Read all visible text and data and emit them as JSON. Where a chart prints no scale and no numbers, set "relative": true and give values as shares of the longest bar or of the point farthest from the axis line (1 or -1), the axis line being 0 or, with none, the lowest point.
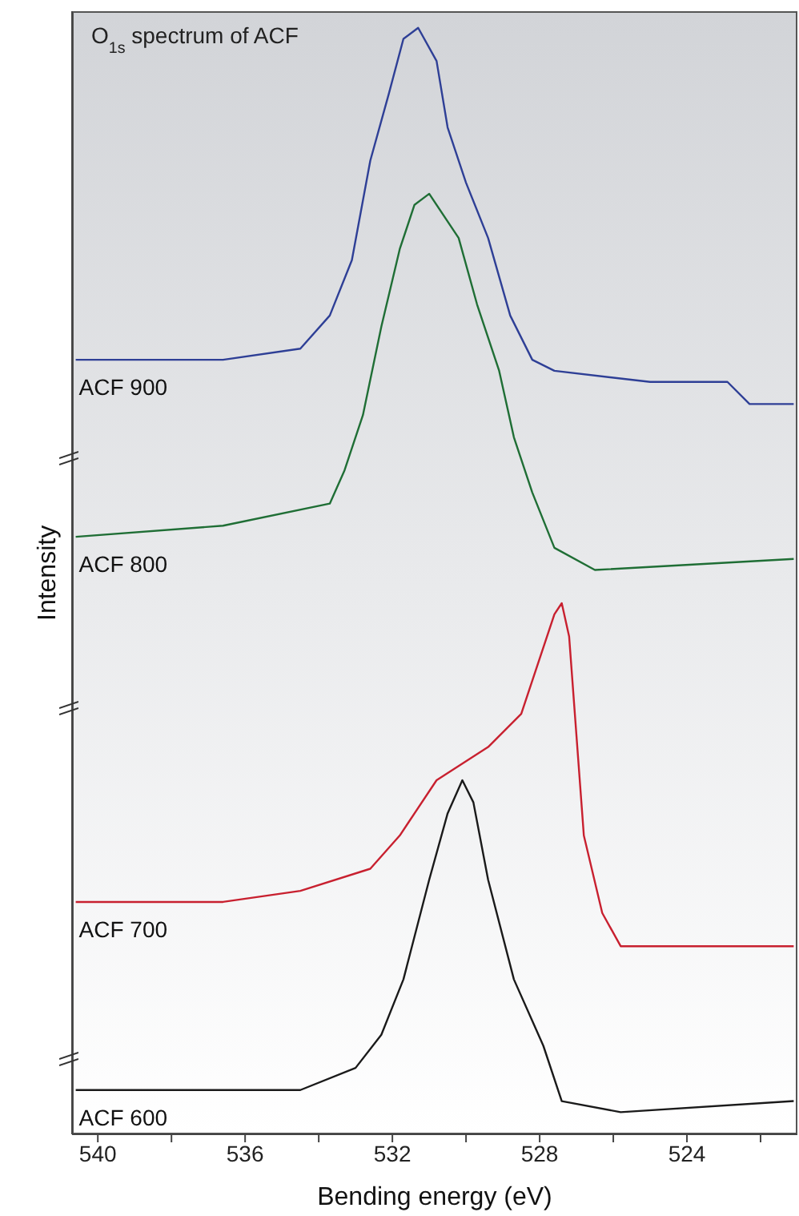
{
  "chart_data": {
    "type": "line",
    "relative": true,
    "title": "O$_{1s}$ spectrum of ACF",
    "xlabel": "Bending energy (eV)",
    "ylabel": "Intensity",
    "xlim": [
      540.7,
      521
    ],
    "xticks": [
      540,
      {
        "value": 538,
        "label": null
      },
      536,
      {
        "value": 534,
        "label": null
      },
      532,
      {
        "value": 530,
        "label": null
      },
      528,
      {
        "value": 526,
        "label": null
      },
      524,
      {
        "value": 522,
        "label": null
      }
    ],
    "series": [
      {
        "name": "ACF 900",
        "color": "#2e3f96",
        "x": [
          540.6,
          536.6,
          534.5,
          533.7,
          533.1,
          532.6,
          532.1,
          531.7,
          531.3,
          530.8,
          530.5,
          530.0,
          529.4,
          528.8,
          528.2,
          527.6,
          525.0,
          522.9,
          522.3,
          521.1
        ],
        "values": [
          0.7,
          0.7,
          0.71,
          0.74,
          0.79,
          0.88,
          0.94,
          0.99,
          1.0,
          0.97,
          0.91,
          0.86,
          0.81,
          0.74,
          0.7,
          0.69,
          0.68,
          0.68,
          0.66,
          0.66
        ]
      },
      {
        "name": "ACF 800",
        "color": "#1f6e35",
        "x": [
          540.6,
          536.6,
          533.7,
          533.3,
          532.8,
          532.3,
          531.8,
          531.4,
          531.0,
          530.2,
          529.7,
          529.1,
          528.7,
          528.2,
          527.6,
          526.5,
          521.1
        ],
        "values": [
          0.54,
          0.55,
          0.57,
          0.6,
          0.65,
          0.73,
          0.8,
          0.84,
          0.85,
          0.81,
          0.75,
          0.69,
          0.63,
          0.58,
          0.53,
          0.51,
          0.52
        ]
      },
      {
        "name": "ACF 700",
        "color": "#c8202f",
        "x": [
          540.6,
          536.6,
          534.5,
          532.6,
          531.8,
          530.8,
          529.4,
          528.5,
          528.1,
          527.6,
          527.4,
          527.2,
          526.8,
          526.3,
          525.8,
          521.1
        ],
        "values": [
          0.21,
          0.21,
          0.22,
          0.24,
          0.27,
          0.32,
          0.35,
          0.38,
          0.42,
          0.47,
          0.48,
          0.45,
          0.27,
          0.2,
          0.17,
          0.17
        ]
      },
      {
        "name": "ACF 600",
        "color": "#1a1a1a",
        "x": [
          540.6,
          536.6,
          534.5,
          533.0,
          532.3,
          531.7,
          531.0,
          530.5,
          530.1,
          529.8,
          529.4,
          528.7,
          527.9,
          527.4,
          525.8,
          521.1
        ],
        "values": [
          0.04,
          0.04,
          0.04,
          0.06,
          0.09,
          0.14,
          0.23,
          0.29,
          0.32,
          0.3,
          0.23,
          0.14,
          0.08,
          0.03,
          0.02,
          0.03
        ]
      }
    ]
  }
}
